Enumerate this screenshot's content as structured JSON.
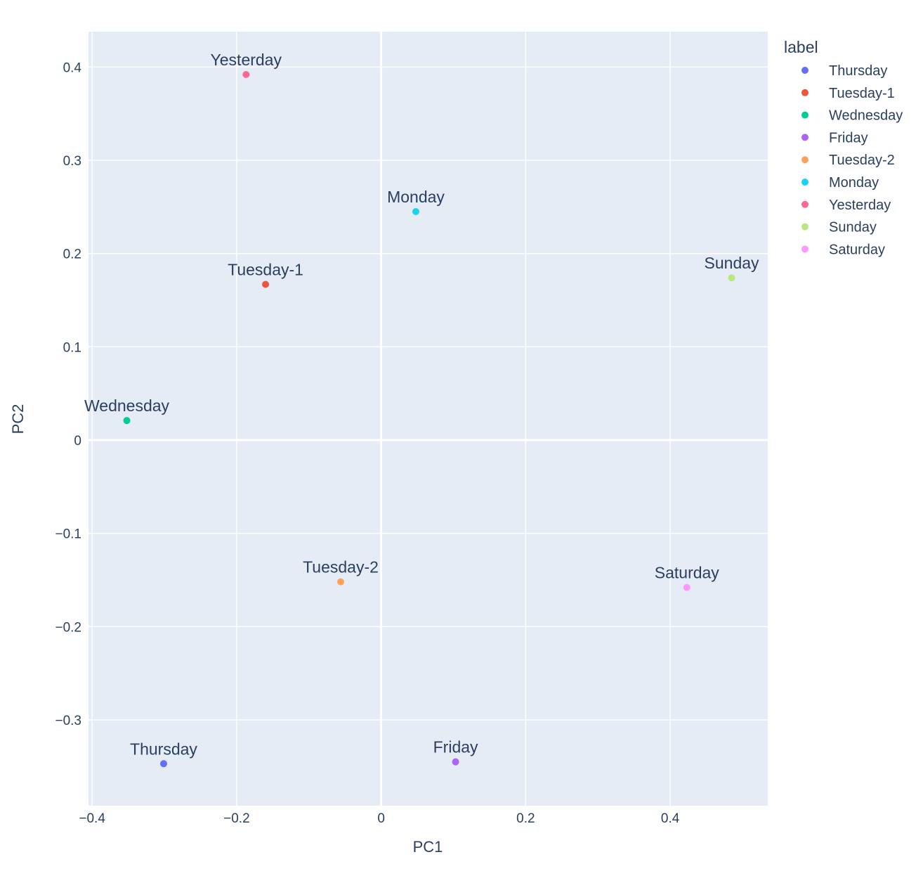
{
  "chart_data": {
    "type": "scatter",
    "title": "",
    "xlabel": "PC1",
    "ylabel": "PC2",
    "xlim": [
      -0.405,
      0.535
    ],
    "ylim": [
      -0.392,
      0.438
    ],
    "x_ticks": [
      -0.4,
      -0.2,
      0,
      0.2,
      0.4
    ],
    "x_tick_labels": [
      "−0.4",
      "−0.2",
      "0",
      "0.2",
      "0.4"
    ],
    "y_ticks": [
      -0.3,
      -0.2,
      -0.1,
      0,
      0.1,
      0.2,
      0.3,
      0.4
    ],
    "y_tick_labels": [
      "−0.3",
      "−0.2",
      "−0.1",
      "0",
      "0.1",
      "0.2",
      "0.3",
      "0.4"
    ],
    "grid": true,
    "legend": {
      "title": "label",
      "position": "right"
    },
    "series": [
      {
        "name": "Thursday",
        "color": "#636efa",
        "x": -0.301,
        "y": -0.347,
        "text": "Thursday"
      },
      {
        "name": "Tuesday-1",
        "color": "#EF553B",
        "x": -0.16,
        "y": 0.167,
        "text": "Tuesday-1"
      },
      {
        "name": "Wednesday",
        "color": "#00cc96",
        "x": -0.352,
        "y": 0.021,
        "text": "Wednesday"
      },
      {
        "name": "Friday",
        "color": "#ab63fa",
        "x": 0.103,
        "y": -0.345,
        "text": "Friday"
      },
      {
        "name": "Tuesday-2",
        "color": "#FFA15A",
        "x": -0.056,
        "y": -0.152,
        "text": "Tuesday-2"
      },
      {
        "name": "Monday",
        "color": "#19d3f3",
        "x": 0.048,
        "y": 0.245,
        "text": "Monday"
      },
      {
        "name": "Yesterday",
        "color": "#FF6692",
        "x": -0.187,
        "y": 0.392,
        "text": "Yesterday"
      },
      {
        "name": "Sunday",
        "color": "#B6E880",
        "x": 0.485,
        "y": 0.174,
        "text": "Sunday"
      },
      {
        "name": "Saturday",
        "color": "#FF97FF",
        "x": 0.423,
        "y": -0.158,
        "text": "Saturday"
      }
    ]
  },
  "colors": {
    "plot_bg": "#e5ecf6",
    "grid": "#ffffff",
    "text": "#2a3f5f"
  }
}
